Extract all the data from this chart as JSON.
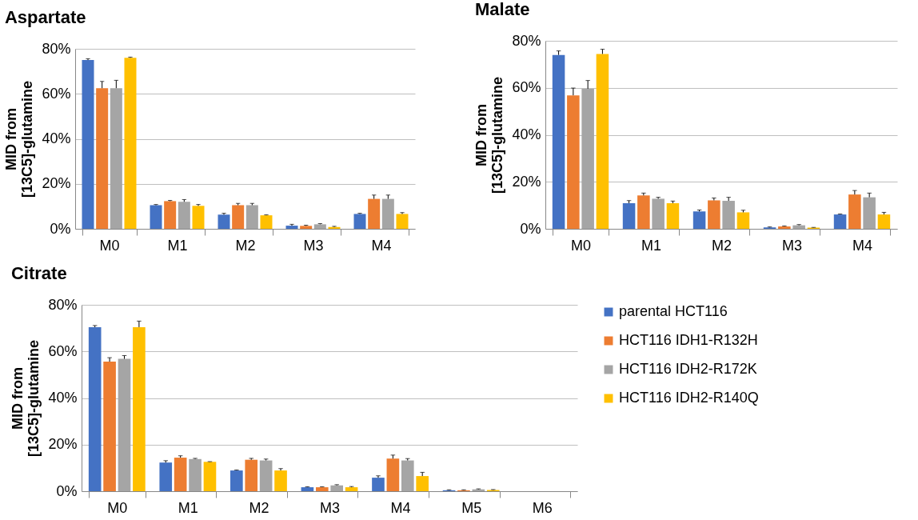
{
  "chart_data": [
    {
      "type": "bar",
      "title": "Aspartate",
      "ylabel": "MID from\n[13C5]-glutamine",
      "categories": [
        "M0",
        "M1",
        "M2",
        "M3",
        "M4"
      ],
      "ylim": [
        0,
        80
      ],
      "yticks": [
        {
          "value": 0,
          "label": "0%"
        },
        {
          "value": 20,
          "label": "20%"
        },
        {
          "value": 40,
          "label": "40%"
        },
        {
          "value": 60,
          "label": "60%"
        },
        {
          "value": 80,
          "label": "80%"
        }
      ],
      "grid": "y",
      "series": [
        {
          "color": "#4472c4",
          "values": [
            75,
            10.5,
            6.3,
            1.4,
            6.6
          ],
          "errors": [
            [
              75,
              75.6
            ],
            [
              10.5,
              10.8
            ],
            [
              6.3,
              6.9
            ],
            [
              1.4,
              2
            ],
            [
              6.6,
              6.9
            ]
          ]
        },
        {
          "color": "#ed7d31",
          "values": [
            62.5,
            12.3,
            10.5,
            1.3,
            13.3
          ],
          "errors": [
            [
              62.5,
              65.5
            ],
            [
              12.3,
              12.6
            ],
            [
              10.5,
              11.3
            ],
            [
              1.3,
              1.6
            ],
            [
              13.3,
              15
            ]
          ]
        },
        {
          "color": "#a5a5a5",
          "values": [
            62.5,
            12,
            10.5,
            2,
            13.3
          ],
          "errors": [
            [
              62.5,
              66
            ],
            [
              12,
              13
            ],
            [
              10.5,
              11.3
            ],
            [
              2,
              2.3
            ],
            [
              13.3,
              15
            ]
          ]
        },
        {
          "color": "#ffc000",
          "values": [
            76,
            10.2,
            6,
            0.8,
            6.6
          ],
          "errors": [
            [
              76,
              76.3
            ],
            [
              10.2,
              10.8
            ],
            [
              6,
              6.2
            ],
            [
              0.8,
              1.1
            ],
            [
              6.6,
              7.2
            ]
          ]
        }
      ]
    },
    {
      "type": "bar",
      "title": "Malate",
      "ylabel": "MID from\n[13C5]-glutamine",
      "categories": [
        "M0",
        "M1",
        "M2",
        "M3",
        "M4"
      ],
      "ylim": [
        0,
        80
      ],
      "yticks": [
        {
          "value": 0,
          "label": "0%"
        },
        {
          "value": 20,
          "label": "20%"
        },
        {
          "value": 40,
          "label": "40%"
        },
        {
          "value": 60,
          "label": "60%"
        },
        {
          "value": 80,
          "label": "80%"
        }
      ],
      "grid": "y",
      "series": [
        {
          "color": "#4472c4",
          "values": [
            74,
            10.9,
            7.4,
            0.6,
            6.1
          ],
          "errors": [
            [
              74,
              75.7
            ],
            [
              10.9,
              12
            ],
            [
              7.4,
              8
            ],
            [
              0.6,
              0.8
            ],
            [
              6.1,
              6.3
            ]
          ]
        },
        {
          "color": "#ed7d31",
          "values": [
            56.8,
            14.2,
            12.1,
            1,
            14.6
          ],
          "errors": [
            [
              56.8,
              59.9
            ],
            [
              14.2,
              15.2
            ],
            [
              12.1,
              13.1
            ],
            [
              1,
              1.2
            ],
            [
              14.6,
              16.3
            ]
          ]
        },
        {
          "color": "#a5a5a5",
          "values": [
            59.6,
            12.8,
            11.9,
            1.5,
            13.4
          ],
          "errors": [
            [
              59.6,
              63.1
            ],
            [
              12.8,
              13.4
            ],
            [
              11.9,
              13.4
            ],
            [
              1.5,
              1.8
            ],
            [
              13.4,
              15.2
            ]
          ]
        },
        {
          "color": "#ffc000",
          "values": [
            74.4,
            10.9,
            7,
            0.5,
            6.1
          ],
          "errors": [
            [
              74.4,
              76.4
            ],
            [
              10.9,
              11.8
            ],
            [
              7,
              7.9
            ],
            [
              0.5,
              0.6
            ],
            [
              6.1,
              7
            ]
          ]
        }
      ]
    },
    {
      "type": "bar",
      "title": "Citrate",
      "ylabel": "MID from\n[13C5]-glutamine",
      "categories": [
        "M0",
        "M1",
        "M2",
        "M3",
        "M4",
        "M5",
        "M6"
      ],
      "ylim": [
        0,
        80
      ],
      "yticks": [
        {
          "value": 0,
          "label": "0%"
        },
        {
          "value": 20,
          "label": "20%"
        },
        {
          "value": 40,
          "label": "40%"
        },
        {
          "value": 60,
          "label": "60%"
        },
        {
          "value": 80,
          "label": "80%"
        }
      ],
      "grid": "y",
      "legend": "right",
      "series": [
        {
          "name": "parental HCT116",
          "color": "#4472c4",
          "values": [
            70.4,
            12.3,
            8.9,
            1.7,
            5.8,
            0.4,
            null
          ],
          "errors": [
            [
              70.4,
              71.1
            ],
            [
              12.3,
              13.1
            ],
            [
              8.9,
              9.1
            ],
            [
              1.7,
              1.9
            ],
            [
              5.8,
              6.6
            ],
            [
              0.4,
              0.6
            ],
            null
          ]
        },
        {
          "name": "HCT116 IDH1-R132H",
          "color": "#ed7d31",
          "values": [
            55.6,
            14.4,
            13.5,
            1.7,
            14,
            0.4,
            null
          ],
          "errors": [
            [
              55.6,
              57.3
            ],
            [
              14.4,
              15.2
            ],
            [
              13.5,
              14.1
            ],
            [
              1.7,
              1.9
            ],
            [
              14,
              15.5
            ],
            [
              0.4,
              0.6
            ],
            null
          ]
        },
        {
          "name": "HCT116 IDH2-R172K",
          "color": "#a5a5a5",
          "values": [
            56.8,
            13.8,
            13.2,
            2.5,
            13.2,
            0.8,
            null
          ],
          "errors": [
            [
              56.8,
              58.2
            ],
            [
              13.8,
              14.1
            ],
            [
              13.2,
              13.8
            ],
            [
              2.5,
              2.8
            ],
            [
              13.2,
              14
            ],
            [
              0.8,
              1
            ],
            null
          ]
        },
        {
          "name": "HCT116 IDH2-R140Q",
          "color": "#ffc000",
          "values": [
            70.4,
            12.6,
            8.9,
            1.7,
            6.5,
            0.5,
            null
          ],
          "errors": [
            [
              70.4,
              73
            ],
            [
              12.6,
              12.7
            ],
            [
              8.9,
              9.7
            ],
            [
              1.7,
              2
            ],
            [
              6.5,
              8.1
            ],
            [
              0.5,
              0.7
            ],
            null
          ]
        }
      ]
    }
  ]
}
